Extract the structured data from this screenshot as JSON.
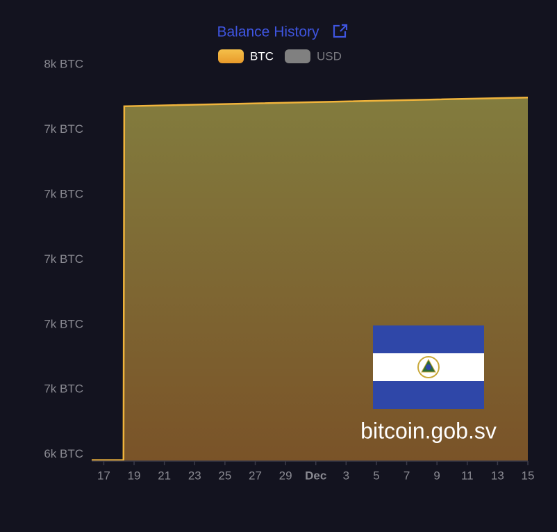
{
  "chart_data": {
    "type": "area",
    "title": "Balance History",
    "annotation": "bitcoin.gob.sv",
    "series": [
      {
        "name": "BTC",
        "color": "#f0b43c",
        "x": [
          16.2,
          18.3,
          18.35,
          45
        ],
        "values": [
          6383,
          6383,
          7472,
          7499
        ]
      },
      {
        "name": "USD",
        "color": "#808080",
        "x": [],
        "values": []
      }
    ],
    "xlim": [
      16.2,
      45
    ],
    "xticks": [
      17,
      19,
      21,
      23,
      25,
      27,
      29,
      {
        "value": 31,
        "label": "Dec"
      },
      {
        "value": 33,
        "label": "3"
      },
      {
        "value": 35,
        "label": "5"
      },
      {
        "value": 37,
        "label": "7"
      },
      {
        "value": 39,
        "label": "9"
      },
      {
        "value": 41,
        "label": "11"
      },
      {
        "value": 43,
        "label": "13"
      },
      {
        "value": 45,
        "label": "15"
      }
    ],
    "ylim": [
      6380,
      7600
    ],
    "yticks": [
      {
        "value": 6400,
        "label": "6k BTC"
      },
      {
        "value": 6600,
        "label": "7k BTC"
      },
      {
        "value": 6800,
        "label": "7k BTC"
      },
      {
        "value": 7000,
        "label": "7k BTC"
      },
      {
        "value": 7200,
        "label": "7k BTC"
      },
      {
        "value": 7400,
        "label": "7k BTC"
      },
      {
        "value": 7600,
        "label": "8k BTC"
      }
    ],
    "grid": false
  }
}
